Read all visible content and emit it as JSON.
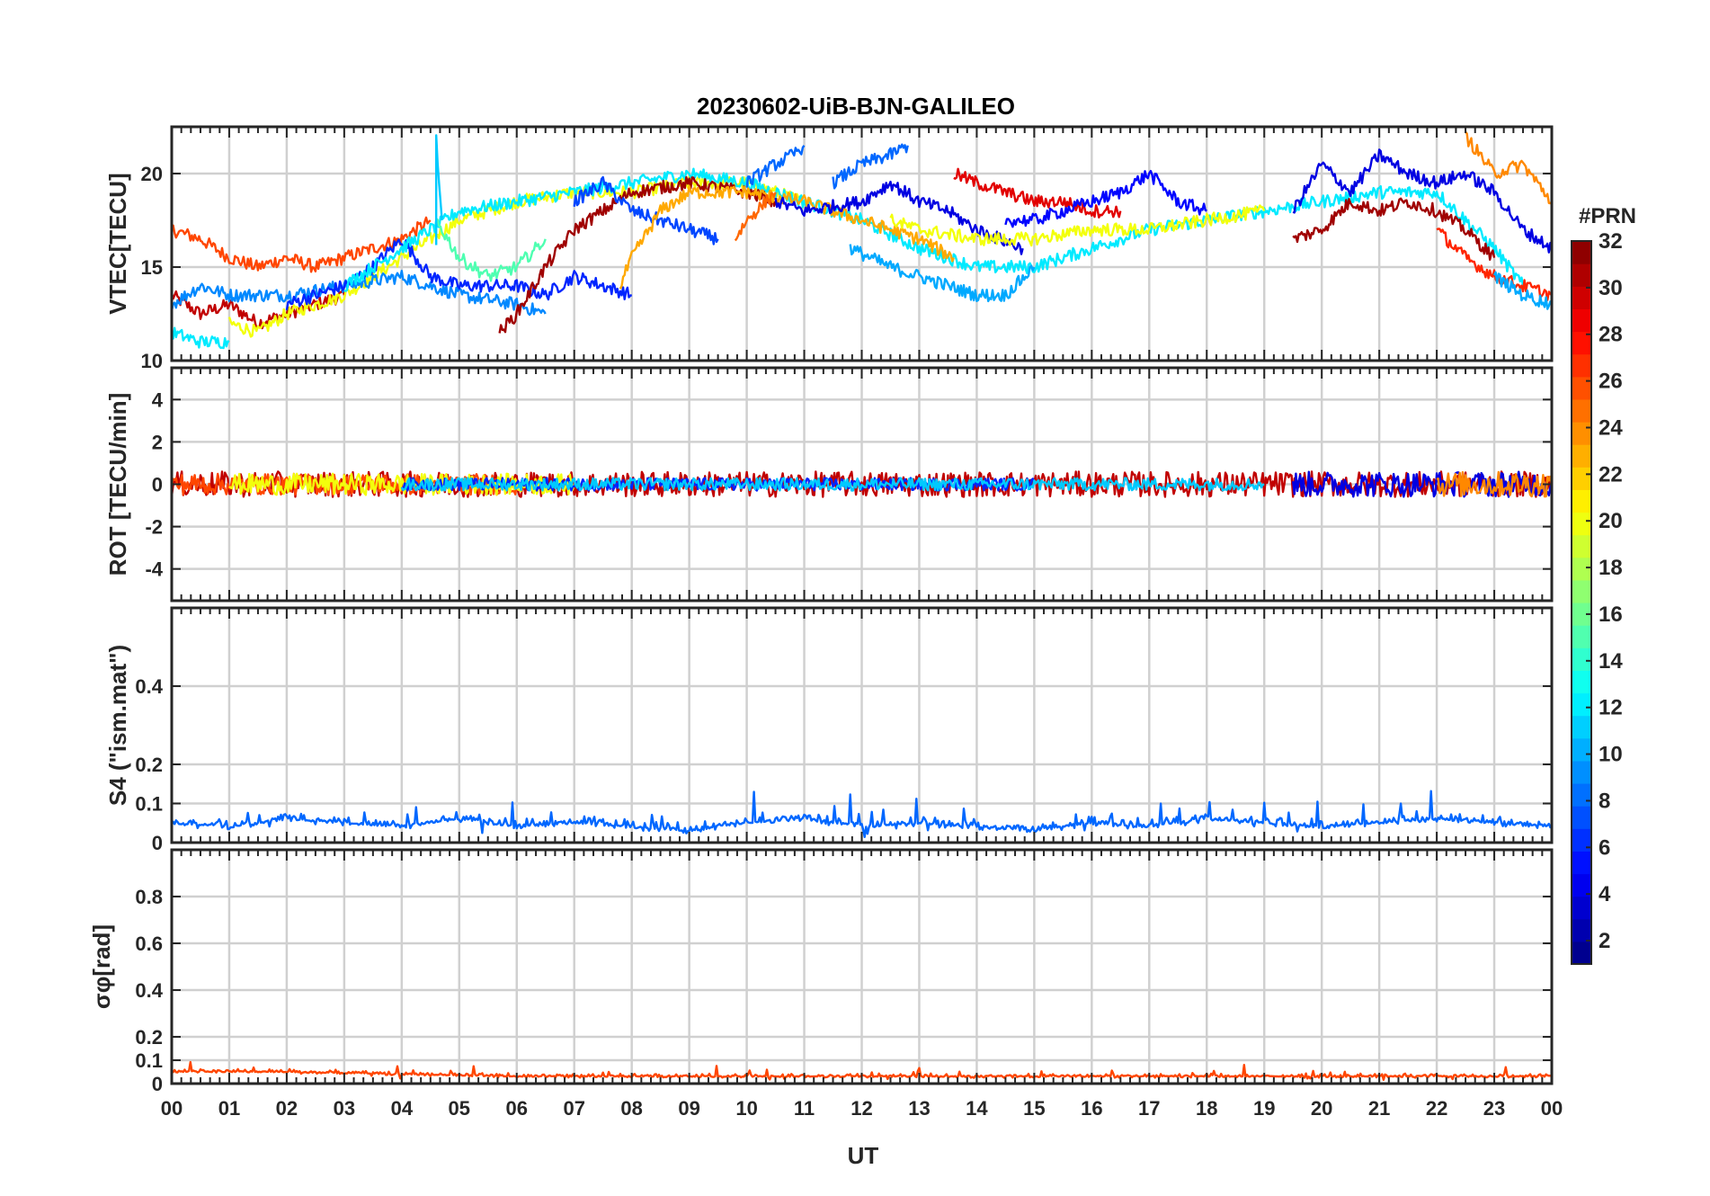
{
  "chart_data": {
    "title": "20230602-UiB-BJN-GALILEO",
    "type": "line",
    "xlabel": "UT",
    "x_ticks": [
      "00",
      "01",
      "02",
      "03",
      "04",
      "05",
      "06",
      "07",
      "08",
      "09",
      "10",
      "11",
      "12",
      "13",
      "14",
      "15",
      "16",
      "17",
      "18",
      "19",
      "20",
      "21",
      "22",
      "23",
      "00"
    ],
    "xlim": [
      0,
      24
    ],
    "grid": true,
    "colorbar": {
      "label": "#PRN",
      "range": [
        1,
        32
      ],
      "ticks": [
        "2",
        "4",
        "6",
        "8",
        "10",
        "12",
        "14",
        "16",
        "18",
        "20",
        "22",
        "24",
        "26",
        "28",
        "30",
        "32"
      ],
      "colormap": "jet"
    },
    "panels": [
      {
        "ylabel": "VTEC[TECU]",
        "ylim": [
          10,
          22.5
        ],
        "y_ticks": [
          "10",
          "15",
          "20"
        ],
        "series": [
          {
            "prn": 30,
            "x": [
              0.0,
              0.5,
              1.0,
              1.5,
              2.0,
              2.5,
              3.0
            ],
            "y": [
              13.5,
              12.5,
              13.0,
              12.0,
              12.5,
              13.0,
              13.5
            ]
          },
          {
            "prn": 26,
            "x": [
              0.0,
              0.5,
              1.0,
              1.5,
              2.0,
              2.5,
              3.0,
              3.5,
              4.0,
              4.5
            ],
            "y": [
              17.0,
              16.5,
              15.5,
              15.0,
              15.5,
              15.0,
              15.5,
              16.0,
              16.5,
              17.5
            ]
          },
          {
            "prn": 20,
            "x": [
              1.0,
              1.5,
              2.0,
              2.5,
              3.0,
              3.5,
              4.0,
              4.5,
              5.0,
              5.5,
              6.0,
              7.0,
              8.0,
              9.0,
              10.0,
              11.0
            ],
            "y": [
              12.0,
              11.5,
              12.5,
              13.0,
              13.5,
              14.5,
              15.5,
              16.5,
              17.5,
              18.0,
              18.5,
              19.0,
              19.0,
              19.5,
              19.5,
              18.5
            ]
          },
          {
            "prn": 9,
            "x": [
              0.0,
              0.5,
              1.0,
              2.0,
              3.0,
              4.0,
              4.5,
              5.0,
              6.0,
              6.5
            ],
            "y": [
              13.0,
              14.0,
              13.5,
              13.5,
              14.0,
              14.5,
              14.0,
              13.5,
              13.0,
              12.5
            ]
          },
          {
            "prn": 6,
            "x": [
              2.0,
              3.0,
              3.5,
              4.0,
              4.5,
              5.0,
              6.0,
              6.5,
              7.0,
              7.5,
              8.0
            ],
            "y": [
              13.0,
              14.0,
              15.0,
              16.5,
              14.5,
              14.0,
              14.0,
              13.5,
              14.5,
              14.0,
              13.5
            ]
          },
          {
            "prn": 12,
            "x": [
              0.0,
              0.5,
              1.0
            ],
            "y": [
              11.5,
              11.0,
              11.0
            ]
          },
          {
            "prn": 12,
            "x": [
              3.0,
              4.0,
              5.0,
              6.0,
              7.0,
              8.0,
              9.0,
              10.0,
              11.0,
              12.0,
              13.0,
              14.0,
              15.0,
              16.0,
              17.0,
              18.0,
              19.0,
              20.0,
              21.0,
              22.0,
              23.0,
              23.5
            ],
            "y": [
              14.0,
              16.0,
              18.0,
              18.5,
              19.0,
              19.5,
              20.0,
              19.5,
              18.5,
              17.5,
              16.0,
              15.0,
              15.0,
              16.0,
              17.0,
              17.5,
              18.0,
              18.5,
              19.0,
              19.0,
              16.0,
              14.0
            ]
          },
          {
            "prn": 15,
            "x": [
              4.6,
              5.0,
              5.5,
              6.0,
              6.5
            ],
            "y": [
              17.5,
              15.5,
              14.5,
              15.0,
              16.5
            ]
          },
          {
            "prn": 11,
            "x": [
              4.6,
              4.6,
              4.7
            ],
            "y": [
              16.0,
              22.0,
              17.5
            ]
          },
          {
            "prn": 31,
            "x": [
              5.7,
              6.0,
              6.5,
              7.0,
              7.5,
              8.0,
              9.0,
              10.0,
              10.5
            ],
            "y": [
              11.5,
              12.5,
              15.0,
              17.0,
              18.0,
              19.0,
              19.5,
              19.0,
              18.5
            ]
          },
          {
            "prn": 7,
            "x": [
              7.0,
              7.5,
              8.0,
              8.5,
              9.0,
              9.5
            ],
            "y": [
              18.5,
              19.5,
              18.0,
              17.5,
              17.0,
              16.5
            ]
          },
          {
            "prn": 23,
            "x": [
              7.8,
              8.0,
              8.5,
              9.0,
              10.0,
              11.0,
              12.0,
              13.0,
              13.6
            ],
            "y": [
              14.0,
              15.5,
              18.0,
              19.0,
              19.0,
              18.5,
              17.5,
              16.5,
              15.5
            ]
          },
          {
            "prn": 25,
            "x": [
              9.8,
              10.0,
              10.5
            ],
            "y": [
              16.5,
              17.5,
              19.0
            ]
          },
          {
            "prn": 8,
            "x": [
              10.0,
              10.5,
              10.8,
              11.0
            ],
            "y": [
              19.5,
              20.5,
              21.0,
              21.5
            ]
          },
          {
            "prn": 8,
            "x": [
              11.5,
              12.0,
              12.5,
              12.8
            ],
            "y": [
              19.5,
              20.5,
              21.0,
              21.5
            ]
          },
          {
            "prn": 4,
            "x": [
              10.5,
              11.0,
              12.0,
              12.5,
              13.0,
              13.5,
              14.0,
              14.8
            ],
            "y": [
              18.5,
              18.0,
              18.5,
              19.5,
              18.5,
              18.0,
              17.0,
              16.0
            ]
          },
          {
            "prn": 10,
            "x": [
              11.8,
              12.5,
              13.0,
              13.5,
              14.0,
              14.5,
              15.0
            ],
            "y": [
              16.0,
              15.0,
              14.5,
              14.0,
              13.5,
              13.5,
              15.0
            ]
          },
          {
            "prn": 29,
            "x": [
              13.6,
              14.0,
              14.5,
              15.0,
              15.5,
              16.0,
              16.5
            ],
            "y": [
              20.0,
              19.5,
              19.0,
              18.5,
              18.5,
              18.0,
              18.0
            ]
          },
          {
            "prn": 20,
            "x": [
              12.5,
              13.0,
              14.0,
              15.0,
              16.0,
              17.0,
              18.0,
              19.0
            ],
            "y": [
              17.5,
              17.0,
              16.5,
              16.5,
              17.0,
              17.0,
              17.5,
              18.0
            ]
          },
          {
            "prn": 5,
            "x": [
              14.5,
              15.0,
              16.0,
              16.5,
              17.0,
              17.5,
              18.0
            ],
            "y": [
              17.5,
              17.5,
              18.5,
              19.0,
              20.0,
              18.5,
              18.0
            ]
          },
          {
            "prn": 4,
            "x": [
              19.5,
              20.0,
              20.5,
              21.0,
              21.5,
              22.0,
              22.5,
              23.0,
              23.5,
              24.0
            ],
            "y": [
              18.0,
              20.5,
              19.0,
              21.0,
              20.0,
              19.5,
              20.0,
              19.0,
              17.0,
              16.0
            ]
          },
          {
            "prn": 31,
            "x": [
              19.5,
              20.0,
              20.5,
              21.0,
              21.5,
              22.0,
              22.5,
              23.0
            ],
            "y": [
              16.5,
              17.0,
              18.5,
              18.0,
              18.5,
              18.0,
              17.0,
              15.5
            ]
          },
          {
            "prn": 24,
            "x": [
              22.5,
              23.0,
              23.5,
              24.0
            ],
            "y": [
              22.0,
              20.0,
              20.5,
              18.5
            ]
          },
          {
            "prn": 27,
            "x": [
              22.0,
              22.5,
              23.0,
              23.5,
              24.0
            ],
            "y": [
              17.0,
              15.5,
              14.5,
              14.0,
              13.5
            ]
          },
          {
            "prn": 10,
            "x": [
              23.0,
              23.5,
              24.0
            ],
            "y": [
              14.5,
              13.5,
              13.0
            ]
          }
        ]
      },
      {
        "ylabel": "ROT [TECU/min]",
        "ylim": [
          -5.5,
          5.5
        ],
        "y_ticks": [
          "-4",
          "-2",
          "0",
          "2",
          "4"
        ],
        "series": [
          {
            "prn": 30,
            "x": [
              0.0,
              3.0,
              6.0,
              9.0,
              12.0,
              15.0,
              18.0,
              21.0,
              24.0
            ],
            "y": [
              0,
              0,
              0,
              0,
              0,
              0,
              0,
              0,
              0
            ],
            "noise": 0.6
          },
          {
            "prn": 26,
            "x": [
              0.0,
              2.0,
              4.0,
              6.0
            ],
            "y": [
              0,
              0,
              0,
              0
            ],
            "noise": 0.5
          },
          {
            "prn": 20,
            "x": [
              1.0,
              3.0,
              5.0,
              7.0
            ],
            "y": [
              0,
              0,
              0,
              0
            ],
            "noise": 0.5
          },
          {
            "prn": 6,
            "x": [
              4.0,
              6.0,
              8.0,
              11.0,
              13.0,
              15.0
            ],
            "y": [
              0,
              0,
              0,
              0,
              0,
              0
            ],
            "noise": 0.3
          },
          {
            "prn": 11,
            "x": [
              4.0,
              6.0,
              7.0,
              10.0,
              14.0,
              17.0,
              19.0
            ],
            "y": [
              0,
              0,
              0,
              0,
              0,
              0,
              0
            ],
            "noise": 0.3
          },
          {
            "prn": 4,
            "x": [
              19.5,
              21.0,
              22.5,
              24.0
            ],
            "y": [
              0,
              0,
              0,
              0
            ],
            "noise": 0.6
          },
          {
            "prn": 24,
            "x": [
              22.0,
              23.0,
              24.0
            ],
            "y": [
              0,
              0,
              0
            ],
            "noise": 0.6
          }
        ]
      },
      {
        "ylabel": "S4 (\"ism.mat\")",
        "ylim": [
          0,
          0.6
        ],
        "y_ticks": [
          "0",
          "0.1",
          "0.2",
          "0.4"
        ],
        "series": [
          {
            "prn": 8,
            "x": [
              0.0,
              1.0,
              2.0,
              3.0,
              4.0,
              5.0,
              6.0,
              7.0,
              8.0,
              9.0,
              10.0,
              11.0,
              12.0,
              13.0,
              14.0,
              15.0,
              16.0,
              17.0,
              18.0,
              19.0,
              20.0,
              21.0,
              22.0,
              23.0,
              24.0
            ],
            "y": [
              0.05,
              0.04,
              0.06,
              0.05,
              0.04,
              0.06,
              0.04,
              0.05,
              0.04,
              0.03,
              0.05,
              0.06,
              0.04,
              0.05,
              0.04,
              0.03,
              0.05,
              0.04,
              0.06,
              0.05,
              0.04,
              0.05,
              0.06,
              0.05,
              0.04
            ],
            "noise": 0.03
          }
        ]
      },
      {
        "ylabel": "σφ[rad]",
        "ylim": [
          0,
          1.0
        ],
        "y_ticks": [
          "0",
          "0.1",
          "0.2",
          "0.4",
          "0.6",
          "0.8"
        ],
        "series": [
          {
            "prn": 26,
            "x": [
              0.0,
              2.0,
              4.0,
              6.0,
              8.0,
              10.0,
              12.0,
              14.0,
              16.0,
              18.0,
              20.0,
              22.0,
              24.0
            ],
            "y": [
              0.05,
              0.05,
              0.04,
              0.03,
              0.03,
              0.03,
              0.03,
              0.03,
              0.03,
              0.03,
              0.03,
              0.03,
              0.03
            ],
            "noise": 0.02
          }
        ]
      }
    ]
  }
}
